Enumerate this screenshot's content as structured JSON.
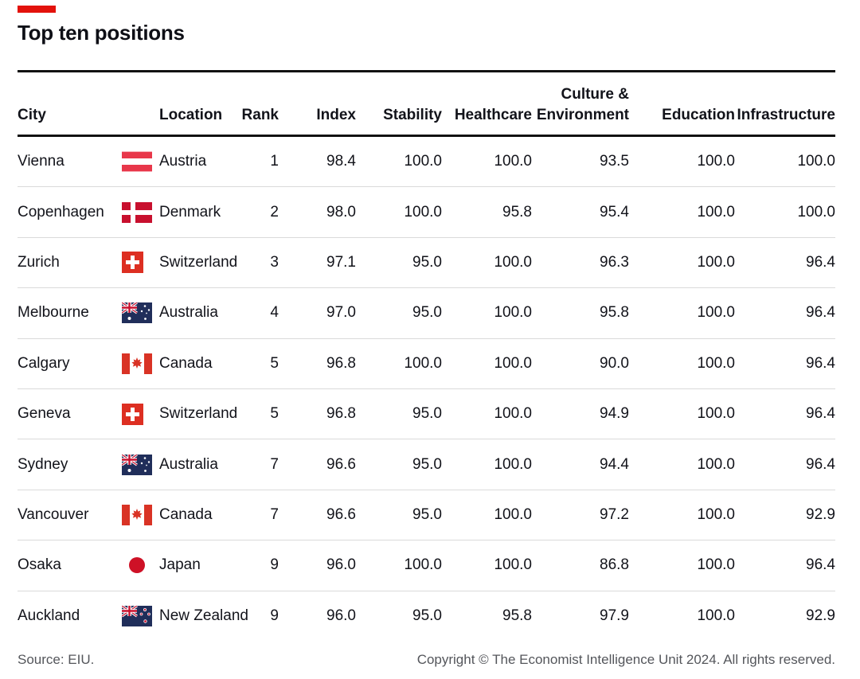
{
  "title": "Top ten positions",
  "accent_color": "#E3120B",
  "footer": {
    "source": "Source: EIU.",
    "copyright": "Copyright © The Economist Intelligence Unit 2024. All rights reserved."
  },
  "table": {
    "columns": [
      {
        "key": "city",
        "label": "City",
        "align": "left"
      },
      {
        "key": "flag",
        "label": "",
        "align": "left"
      },
      {
        "key": "location",
        "label": "Location",
        "align": "left"
      },
      {
        "key": "rank",
        "label": "Rank",
        "align": "right"
      },
      {
        "key": "index",
        "label": "Index",
        "align": "right"
      },
      {
        "key": "stability",
        "label": "Stability",
        "align": "right"
      },
      {
        "key": "healthcare",
        "label": "Healthcare",
        "align": "right"
      },
      {
        "key": "culture",
        "label": "Culture &\nEnvironment",
        "align": "right"
      },
      {
        "key": "education",
        "label": "Education",
        "align": "right"
      },
      {
        "key": "infrastructure",
        "label": "Infrastructure",
        "align": "right"
      }
    ],
    "rows": [
      {
        "city": "Vienna",
        "flag": "austria",
        "location": "Austria",
        "rank": "1",
        "index": "98.4",
        "stability": "100.0",
        "healthcare": "100.0",
        "culture": "93.5",
        "education": "100.0",
        "infrastructure": "100.0"
      },
      {
        "city": "Copenhagen",
        "flag": "denmark",
        "location": "Denmark",
        "rank": "2",
        "index": "98.0",
        "stability": "100.0",
        "healthcare": "95.8",
        "culture": "95.4",
        "education": "100.0",
        "infrastructure": "100.0"
      },
      {
        "city": "Zurich",
        "flag": "switzerland",
        "location": "Switzerland",
        "rank": "3",
        "index": "97.1",
        "stability": "95.0",
        "healthcare": "100.0",
        "culture": "96.3",
        "education": "100.0",
        "infrastructure": "96.4"
      },
      {
        "city": "Melbourne",
        "flag": "australia",
        "location": "Australia",
        "rank": "4",
        "index": "97.0",
        "stability": "95.0",
        "healthcare": "100.0",
        "culture": "95.8",
        "education": "100.0",
        "infrastructure": "96.4"
      },
      {
        "city": "Calgary",
        "flag": "canada",
        "location": "Canada",
        "rank": "5",
        "index": "96.8",
        "stability": "100.0",
        "healthcare": "100.0",
        "culture": "90.0",
        "education": "100.0",
        "infrastructure": "96.4"
      },
      {
        "city": "Geneva",
        "flag": "switzerland",
        "location": "Switzerland",
        "rank": "5",
        "index": "96.8",
        "stability": "95.0",
        "healthcare": "100.0",
        "culture": "94.9",
        "education": "100.0",
        "infrastructure": "96.4"
      },
      {
        "city": "Sydney",
        "flag": "australia",
        "location": "Australia",
        "rank": "7",
        "index": "96.6",
        "stability": "95.0",
        "healthcare": "100.0",
        "culture": "94.4",
        "education": "100.0",
        "infrastructure": "96.4"
      },
      {
        "city": "Vancouver",
        "flag": "canada",
        "location": "Canada",
        "rank": "7",
        "index": "96.6",
        "stability": "95.0",
        "healthcare": "100.0",
        "culture": "97.2",
        "education": "100.0",
        "infrastructure": "92.9"
      },
      {
        "city": "Osaka",
        "flag": "japan",
        "location": "Japan",
        "rank": "9",
        "index": "96.0",
        "stability": "100.0",
        "healthcare": "100.0",
        "culture": "86.8",
        "education": "100.0",
        "infrastructure": "96.4"
      },
      {
        "city": "Auckland",
        "flag": "new-zealand",
        "location": "New Zealand",
        "rank": "9",
        "index": "96.0",
        "stability": "95.0",
        "healthcare": "95.8",
        "culture": "97.9",
        "education": "100.0",
        "infrastructure": "92.9"
      }
    ]
  },
  "chart_data": {
    "type": "table",
    "title": "Top ten positions",
    "columns": [
      "City",
      "Location",
      "Rank",
      "Index",
      "Stability",
      "Healthcare",
      "Culture & Environment",
      "Education",
      "Infrastructure"
    ],
    "rows": [
      [
        "Vienna",
        "Austria",
        1,
        98.4,
        100.0,
        100.0,
        93.5,
        100.0,
        100.0
      ],
      [
        "Copenhagen",
        "Denmark",
        2,
        98.0,
        100.0,
        95.8,
        95.4,
        100.0,
        100.0
      ],
      [
        "Zurich",
        "Switzerland",
        3,
        97.1,
        95.0,
        100.0,
        96.3,
        100.0,
        96.4
      ],
      [
        "Melbourne",
        "Australia",
        4,
        97.0,
        95.0,
        100.0,
        95.8,
        100.0,
        96.4
      ],
      [
        "Calgary",
        "Canada",
        5,
        96.8,
        100.0,
        100.0,
        90.0,
        100.0,
        96.4
      ],
      [
        "Geneva",
        "Switzerland",
        5,
        96.8,
        95.0,
        100.0,
        94.9,
        100.0,
        96.4
      ],
      [
        "Sydney",
        "Australia",
        7,
        96.6,
        95.0,
        100.0,
        94.4,
        100.0,
        96.4
      ],
      [
        "Vancouver",
        "Canada",
        7,
        96.6,
        95.0,
        100.0,
        97.2,
        100.0,
        92.9
      ],
      [
        "Osaka",
        "Japan",
        9,
        96.0,
        100.0,
        100.0,
        86.8,
        100.0,
        96.4
      ],
      [
        "Auckland",
        "New Zealand",
        9,
        96.0,
        95.0,
        95.8,
        97.9,
        100.0,
        92.9
      ]
    ],
    "source": "Source: EIU.",
    "note": "Copyright © The Economist Intelligence Unit 2024. All rights reserved."
  }
}
